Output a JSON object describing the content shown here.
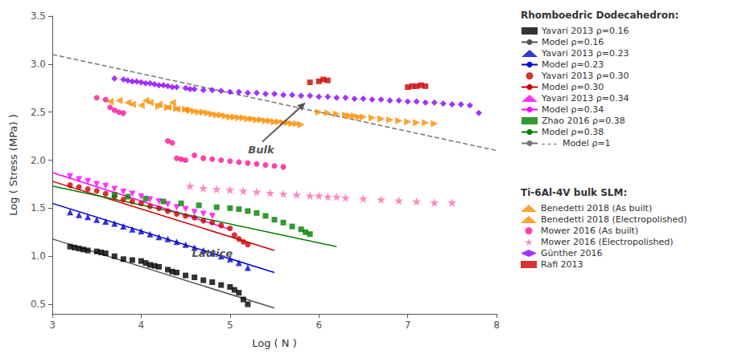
{
  "chart_data": {
    "type": "scatter",
    "xlabel": "Log ( N )",
    "ylabel": "Log ( Stress (MPa) )",
    "xlim": [
      3,
      8
    ],
    "ylim": [
      0.4,
      3.5
    ],
    "xticks": [
      3,
      4,
      5,
      6,
      7,
      8
    ],
    "yticks": [
      0.5,
      {
        "value": 1.0,
        "label": "1.0"
      },
      1.5,
      {
        "value": 2.0,
        "label": "2.0"
      },
      2.5,
      {
        "value": 3.0,
        "label": "3.0"
      },
      3.5
    ],
    "grid": false,
    "legend": "right",
    "groups": [
      {
        "title": "Rhomboedric Dodecahedron:",
        "series": [
          {
            "name": "Yavari 2013 ρ=0.16",
            "type": "scatter",
            "marker": "square",
            "color": "#000000",
            "x": [
              3.2,
              3.25,
              3.3,
              3.35,
              3.4,
              3.5,
              3.55,
              3.6,
              3.7,
              3.8,
              3.9,
              4.0,
              4.05,
              4.1,
              4.15,
              4.2,
              4.3,
              4.35,
              4.4,
              4.5,
              4.6,
              4.7,
              4.8,
              4.9,
              5.0,
              5.05,
              5.1,
              5.15,
              5.2
            ],
            "y": [
              1.1,
              1.09,
              1.08,
              1.07,
              1.06,
              1.05,
              1.04,
              1.03,
              1.0,
              0.97,
              0.96,
              0.95,
              0.93,
              0.91,
              0.9,
              0.89,
              0.86,
              0.84,
              0.83,
              0.8,
              0.78,
              0.75,
              0.73,
              0.7,
              0.68,
              0.65,
              0.62,
              0.55,
              0.5
            ]
          },
          {
            "name": "Model ρ=0.16",
            "type": "line",
            "line_style": "solid",
            "color": "#555555",
            "x": [
              3.0,
              5.5
            ],
            "y": [
              1.18,
              0.46
            ]
          },
          {
            "name": "Yavari 2013 ρ=0.23",
            "type": "scatter",
            "marker": "triangle-up",
            "color": "#0000cc",
            "x": [
              3.2,
              3.3,
              3.4,
              3.5,
              3.6,
              3.7,
              3.8,
              3.9,
              4.0,
              4.1,
              4.2,
              4.3,
              4.4,
              4.5,
              4.6,
              4.7,
              4.8,
              4.9,
              5.0,
              5.1,
              5.2
            ],
            "y": [
              1.46,
              1.43,
              1.41,
              1.38,
              1.36,
              1.34,
              1.31,
              1.28,
              1.26,
              1.23,
              1.2,
              1.18,
              1.15,
              1.12,
              1.09,
              1.06,
              1.03,
              1.0,
              0.97,
              0.93,
              0.88
            ]
          },
          {
            "name": "Model ρ=0.23",
            "type": "line",
            "line_style": "solid",
            "color": "#0000cc",
            "x": [
              3.0,
              5.5
            ],
            "y": [
              1.55,
              0.83
            ]
          },
          {
            "name": "Yavari 2013 ρ=0.30",
            "type": "scatter",
            "marker": "circle",
            "color": "#cc0000",
            "x": [
              3.2,
              3.3,
              3.4,
              3.5,
              3.6,
              3.7,
              3.8,
              3.9,
              4.0,
              4.1,
              4.2,
              4.3,
              4.4,
              4.5,
              4.6,
              4.7,
              4.8,
              4.9,
              5.0,
              5.05,
              5.1,
              5.15,
              5.2
            ],
            "y": [
              1.74,
              1.72,
              1.7,
              1.68,
              1.65,
              1.62,
              1.59,
              1.57,
              1.55,
              1.52,
              1.5,
              1.47,
              1.44,
              1.42,
              1.4,
              1.37,
              1.35,
              1.32,
              1.29,
              1.22,
              1.18,
              1.15,
              1.12
            ]
          },
          {
            "name": "Model ρ=0.30",
            "type": "line",
            "line_style": "solid",
            "color": "#cc0000",
            "x": [
              3.0,
              5.5
            ],
            "y": [
              1.78,
              1.06
            ]
          },
          {
            "name": "Yavari 2013 ρ=0.34",
            "type": "scatter",
            "marker": "triangle-down",
            "color": "#ff00ff",
            "x": [
              3.2,
              3.3,
              3.4,
              3.5,
              3.6,
              3.7,
              3.8,
              3.9,
              4.0,
              4.1,
              4.2,
              4.3,
              4.4,
              4.5,
              4.6,
              4.7,
              4.8
            ],
            "y": [
              1.83,
              1.8,
              1.78,
              1.75,
              1.73,
              1.7,
              1.67,
              1.65,
              1.62,
              1.59,
              1.57,
              1.54,
              1.51,
              1.49,
              1.46,
              1.44,
              1.42
            ]
          },
          {
            "name": "Model ρ=0.34",
            "type": "line",
            "line_style": "solid",
            "color": "#ff00ff",
            "x": [
              3.0,
              5.0
            ],
            "y": [
              1.87,
              1.28
            ]
          },
          {
            "name": "Zhao 2016 ρ=0.38",
            "type": "scatter",
            "marker": "square",
            "color": "#008000",
            "x": [
              3.7,
              3.85,
              4.05,
              4.25,
              4.45,
              4.65,
              4.85,
              5.0,
              5.1,
              5.2,
              5.3,
              5.4,
              5.5,
              5.6,
              5.7,
              5.8,
              5.85,
              5.9
            ],
            "y": [
              1.64,
              1.62,
              1.6,
              1.57,
              1.55,
              1.53,
              1.51,
              1.5,
              1.49,
              1.47,
              1.45,
              1.42,
              1.38,
              1.35,
              1.31,
              1.28,
              1.25,
              1.23
            ]
          },
          {
            "name": "Model ρ=0.38",
            "type": "line",
            "line_style": "solid",
            "color": "#008000",
            "x": [
              3.0,
              6.2
            ],
            "y": [
              1.73,
              1.1
            ]
          },
          {
            "name": "- - -  Model ρ=1",
            "type": "line",
            "line_style": "dashed",
            "color": "#777777",
            "x": [
              3.0,
              8.0
            ],
            "y": [
              3.1,
              2.1
            ]
          }
        ]
      },
      {
        "title": "Ti-6Al-4V bulk SLM:",
        "series": [
          {
            "name": "Benedetti 2018 (As built)",
            "type": "scatter",
            "marker": "triangle-left",
            "color": "#FF8C00",
            "x": [
              3.65,
              3.75,
              3.85,
              3.9,
              4.0,
              4.05,
              4.1,
              4.2,
              4.3,
              4.35,
              4.4,
              4.5
            ],
            "y": [
              2.61,
              2.62,
              2.6,
              2.58,
              2.57,
              2.62,
              2.6,
              2.58,
              2.55,
              2.6,
              2.53,
              2.52
            ]
          },
          {
            "name": "Benedetti 2018 (Electropolished)",
            "type": "scatter",
            "marker": "triangle-right",
            "color": "#FF8C00",
            "x": [
              4.2,
              4.3,
              4.4,
              4.5,
              4.55,
              4.6,
              4.65,
              4.7,
              4.75,
              4.8,
              4.85,
              4.9,
              4.95,
              5.0,
              5.05,
              5.1,
              5.15,
              5.2,
              5.25,
              5.3,
              5.35,
              5.4,
              5.45,
              5.5,
              5.55,
              5.6,
              5.65,
              5.7,
              5.75,
              5.8,
              6.0,
              6.1,
              6.2,
              6.3,
              6.35,
              6.4,
              6.45,
              6.5,
              6.6,
              6.7,
              6.8,
              6.9,
              7.0,
              7.1,
              7.2,
              7.3
            ],
            "y": [
              2.56,
              2.55,
              2.54,
              2.53,
              2.52,
              2.51,
              2.5,
              2.5,
              2.49,
              2.48,
              2.47,
              2.47,
              2.46,
              2.45,
              2.45,
              2.44,
              2.44,
              2.43,
              2.43,
              2.42,
              2.42,
              2.41,
              2.41,
              2.4,
              2.4,
              2.39,
              2.39,
              2.38,
              2.38,
              2.37,
              2.5,
              2.49,
              2.48,
              2.47,
              2.46,
              2.46,
              2.45,
              2.45,
              2.44,
              2.43,
              2.42,
              2.41,
              2.4,
              2.39,
              2.39,
              2.38
            ]
          },
          {
            "name": "Mower 2016 (As built)",
            "type": "scatter",
            "marker": "circle",
            "color": "#ff1493",
            "x": [
              3.5,
              3.6,
              3.65,
              3.7,
              3.75,
              3.8,
              4.3,
              4.35,
              4.4,
              4.45,
              4.5,
              4.6,
              4.7,
              4.8,
              4.9,
              5.0,
              5.1,
              5.2,
              5.3,
              5.4,
              5.5,
              5.6
            ],
            "y": [
              2.65,
              2.63,
              2.55,
              2.52,
              2.5,
              2.49,
              2.2,
              2.18,
              2.02,
              2.01,
              2.0,
              2.05,
              2.02,
              2.01,
              2.0,
              1.99,
              1.98,
              1.97,
              1.96,
              1.95,
              1.94,
              1.93
            ]
          },
          {
            "name": "Mower 2016 (Electropolished)",
            "type": "scatter",
            "marker": "star",
            "color": "#ff69b4",
            "x": [
              4.55,
              4.7,
              4.85,
              5.0,
              5.15,
              5.3,
              5.45,
              5.6,
              5.75,
              5.9,
              6.0,
              6.1,
              6.2,
              6.3,
              6.5,
              6.7,
              6.9,
              7.1,
              7.3,
              7.5
            ],
            "y": [
              1.73,
              1.71,
              1.7,
              1.69,
              1.68,
              1.67,
              1.66,
              1.65,
              1.64,
              1.63,
              1.63,
              1.62,
              1.62,
              1.61,
              1.6,
              1.59,
              1.58,
              1.57,
              1.56,
              1.56
            ]
          },
          {
            "name": "Günther 2016",
            "type": "scatter",
            "marker": "diamond",
            "color": "#8b00ff",
            "x": [
              3.7,
              3.8,
              3.85,
              3.9,
              3.95,
              4.0,
              4.05,
              4.1,
              4.15,
              4.2,
              4.25,
              4.3,
              4.35,
              4.4,
              4.5,
              4.55,
              4.6,
              4.7,
              4.8,
              4.9,
              5.0,
              5.1,
              5.2,
              5.3,
              5.4,
              5.5,
              5.6,
              5.7,
              5.8,
              5.9,
              6.0,
              6.1,
              6.2,
              6.3,
              6.4,
              6.5,
              6.6,
              6.7,
              6.8,
              6.9,
              7.0,
              7.1,
              7.2,
              7.3,
              7.4,
              7.5,
              7.6,
              7.7,
              7.8
            ],
            "y": [
              2.85,
              2.84,
              2.83,
              2.82,
              2.82,
              2.81,
              2.8,
              2.8,
              2.79,
              2.78,
              2.78,
              2.77,
              2.76,
              2.76,
              2.75,
              2.74,
              2.74,
              2.73,
              2.73,
              2.72,
              2.71,
              2.71,
              2.7,
              2.7,
              2.69,
              2.69,
              2.68,
              2.68,
              2.67,
              2.67,
              2.66,
              2.66,
              2.65,
              2.65,
              2.64,
              2.64,
              2.63,
              2.63,
              2.62,
              2.62,
              2.61,
              2.61,
              2.6,
              2.6,
              2.59,
              2.58,
              2.58,
              2.57,
              2.49
            ]
          },
          {
            "name": "Rafi 2013",
            "type": "scatter",
            "marker": "square",
            "color": "#cc0000",
            "x": [
              5.9,
              6.0,
              6.05,
              6.1,
              7.0,
              7.05,
              7.1,
              7.15,
              7.2
            ],
            "y": [
              2.81,
              2.82,
              2.84,
              2.83,
              2.76,
              2.77,
              2.77,
              2.78,
              2.77
            ]
          }
        ]
      }
    ],
    "annotations": [
      {
        "text": "Bulk",
        "x": 5.85,
        "y": 2.6,
        "text_x": 5.35,
        "text_y": 2.18,
        "color": "#555555"
      },
      {
        "text": "Lattice",
        "x": 4.8,
        "y": 1.03,
        "color": "#555555"
      }
    ]
  }
}
